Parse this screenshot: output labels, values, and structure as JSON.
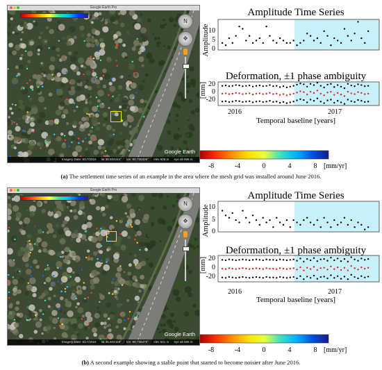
{
  "panels": [
    {
      "id": "a",
      "earth": {
        "window_title": "Google Earth Pro",
        "status": [
          "Imagery Date: 8/17/2015",
          "lat  36.604244°",
          "lon  -80.736325°",
          "elev  606 m",
          "eye alt  696 m"
        ],
        "logo": "Google Earth"
      },
      "amplitude": {
        "title": "Amplitude Time Series",
        "ylabel": "Amplitude",
        "yticks": [
          "10",
          "5",
          "0"
        ],
        "ylim": [
          0,
          13
        ]
      },
      "deformation": {
        "title": "Deformation, ±1 phase ambiguity",
        "ylabel": "[mm]",
        "yticks": [
          "20",
          "0",
          "-20"
        ],
        "ylim": [
          -30,
          30
        ]
      },
      "xticks": [
        "2016",
        "2017"
      ],
      "xlabel": "Temporal baseline [years]",
      "colorbar": {
        "ticks": [
          "-8",
          "-4",
          "0",
          "4",
          "8"
        ],
        "unit": "[mm/yr]"
      },
      "caption_tag": "(a)",
      "caption_text": " The settlement time series of an example in the area where the mesh grid was installed around June 2016."
    },
    {
      "id": "b",
      "earth": {
        "window_title": "Google Earth Pro",
        "status": [
          "Imagery Date: 8/17/2015",
          "lat  36.604348°",
          "lon  -80.736476°",
          "elev  621 m",
          "eye alt  696 m"
        ],
        "logo": "Google Earth"
      },
      "amplitude": {
        "title": "Amplitude Time Series",
        "ylabel": "Amplitude",
        "yticks": [
          "10",
          "5",
          "0"
        ],
        "ylim": [
          0,
          13
        ]
      },
      "deformation": {
        "title": "Deformation, ±1 phase ambiguity",
        "ylabel": "[mm]",
        "yticks": [
          "20",
          "0",
          "-20"
        ],
        "ylim": [
          -30,
          30
        ]
      },
      "xticks": [
        "2016",
        "2017"
      ],
      "xlabel": "Temporal baseline [years]",
      "colorbar": {
        "ticks": [
          "-8",
          "-4",
          "0",
          "4",
          "8"
        ],
        "unit": "[mm/yr]"
      },
      "caption_tag": "(b)",
      "caption_text": " A second example showing a stable point that started to become noisier after June 2016."
    }
  ],
  "chart_data": [
    {
      "type": "scatter",
      "title": "Amplitude Time Series",
      "ylabel": "Amplitude",
      "xlabel": "Temporal baseline [years]",
      "xlim": [
        2015.55,
        2017.45
      ],
      "ylim": [
        0,
        13
      ],
      "highlight_from": 2016.45,
      "series": [
        {
          "x": [
            2015.6,
            2015.64,
            2015.68,
            2015.72,
            2015.76,
            2015.8,
            2015.84,
            2015.88,
            2015.92,
            2015.96,
            2016.0,
            2016.04,
            2016.08,
            2016.12,
            2016.16,
            2016.2,
            2016.24,
            2016.28,
            2016.32,
            2016.36,
            2016.4,
            2016.44,
            2016.48,
            2016.52,
            2016.56,
            2016.6,
            2016.64,
            2016.68,
            2016.72,
            2016.76,
            2016.8,
            2016.84,
            2016.88,
            2016.92,
            2016.96,
            2017.0,
            2017.04,
            2017.08,
            2017.12,
            2017.16,
            2017.2,
            2017.24,
            2017.28,
            2017.32
          ],
          "y": [
            3,
            2,
            5,
            3,
            6,
            10,
            9,
            4,
            6,
            3,
            4,
            5,
            3,
            10,
            6,
            4,
            3,
            5,
            4,
            3,
            3,
            4,
            2,
            3,
            4,
            7,
            6,
            4,
            5,
            3,
            8,
            6,
            2,
            5,
            4,
            3,
            9,
            6,
            4,
            7,
            12,
            5,
            3,
            8
          ]
        }
      ]
    },
    {
      "type": "scatter",
      "title": "Deformation, ±1 phase ambiguity",
      "ylabel": "[mm]",
      "xlabel": "Temporal baseline [years]",
      "xlim": [
        2015.55,
        2017.45
      ],
      "ylim": [
        -30,
        30
      ],
      "highlight_from": 2016.45,
      "series": [
        {
          "x": [
            2015.6,
            2015.64,
            2015.68,
            2015.72,
            2015.76,
            2015.8,
            2015.84,
            2015.88,
            2015.92,
            2015.96,
            2016.0,
            2016.04,
            2016.08,
            2016.12,
            2016.16,
            2016.2,
            2016.24,
            2016.28,
            2016.32,
            2016.36,
            2016.4,
            2016.44,
            2016.48,
            2016.52,
            2016.56,
            2016.6,
            2016.64,
            2016.68,
            2016.72,
            2016.76,
            2016.8,
            2016.84,
            2016.88,
            2016.92,
            2016.96,
            2017.0,
            2017.04,
            2017.08,
            2017.12,
            2017.16,
            2017.2,
            2017.24,
            2017.28,
            2017.32
          ],
          "y": [
            0,
            1,
            -1,
            0,
            2,
            1,
            -1,
            0,
            1,
            -2,
            0,
            1,
            -1,
            0,
            2,
            -1,
            0,
            -3,
            -1,
            -4,
            -2,
            0,
            3,
            6,
            4,
            -2,
            5,
            2,
            8,
            0,
            -4,
            3,
            5,
            -3,
            2,
            -2,
            -6,
            5,
            1,
            -1,
            4,
            2,
            -1,
            0
          ]
        }
      ]
    },
    {
      "type": "scatter",
      "title": "Amplitude Time Series",
      "ylabel": "Amplitude",
      "xlabel": "Temporal baseline [years]",
      "xlim": [
        2015.55,
        2017.45
      ],
      "ylim": [
        0,
        13
      ],
      "highlight_from": 2016.45,
      "series": [
        {
          "x": [
            2015.6,
            2015.64,
            2015.68,
            2015.72,
            2015.76,
            2015.8,
            2015.84,
            2015.88,
            2015.92,
            2015.96,
            2016.0,
            2016.04,
            2016.08,
            2016.12,
            2016.16,
            2016.2,
            2016.24,
            2016.28,
            2016.32,
            2016.36,
            2016.4,
            2016.44,
            2016.48,
            2016.52,
            2016.56,
            2016.6,
            2016.64,
            2016.68,
            2016.72,
            2016.76,
            2016.8,
            2016.84,
            2016.88,
            2016.92,
            2016.96,
            2017.0,
            2017.04,
            2017.08,
            2017.12,
            2017.16,
            2017.2,
            2017.24,
            2017.28,
            2017.32
          ],
          "y": [
            9,
            7,
            6,
            8,
            5,
            4,
            9,
            6,
            4,
            7,
            5,
            3,
            6,
            4,
            5,
            2,
            6,
            4,
            3,
            5,
            2,
            5,
            4,
            3,
            5,
            6,
            4,
            3,
            5,
            2,
            6,
            4,
            2,
            5,
            3,
            4,
            6,
            3,
            5,
            2,
            4,
            3,
            1,
            2
          ]
        }
      ]
    },
    {
      "type": "scatter",
      "title": "Deformation, ±1 phase ambiguity",
      "ylabel": "[mm]",
      "xlabel": "Temporal baseline [years]",
      "xlim": [
        2015.55,
        2017.45
      ],
      "ylim": [
        -30,
        30
      ],
      "highlight_from": 2016.45,
      "series": [
        {
          "x": [
            2015.6,
            2015.64,
            2015.68,
            2015.72,
            2015.76,
            2015.8,
            2015.84,
            2015.88,
            2015.92,
            2015.96,
            2016.0,
            2016.04,
            2016.08,
            2016.12,
            2016.16,
            2016.2,
            2016.24,
            2016.28,
            2016.32,
            2016.36,
            2016.4,
            2016.44,
            2016.48,
            2016.52,
            2016.56,
            2016.6,
            2016.64,
            2016.68,
            2016.72,
            2016.76,
            2016.8,
            2016.84,
            2016.88,
            2016.92,
            2016.96,
            2017.0,
            2017.04,
            2017.08,
            2017.12,
            2017.16,
            2017.2,
            2017.24,
            2017.28,
            2017.32
          ],
          "y": [
            0,
            -1,
            1,
            0,
            -1,
            0,
            1,
            0,
            -1,
            0,
            1,
            0,
            -1,
            1,
            0,
            0,
            -1,
            1,
            0,
            -1,
            0,
            1,
            -2,
            3,
            -4,
            2,
            -1,
            4,
            -3,
            1,
            2,
            -2,
            5,
            -1,
            3,
            -3,
            2,
            -4,
            6,
            1,
            -2,
            3,
            0,
            2
          ]
        }
      ]
    }
  ],
  "colors": {
    "highlight": "#c8f0f8",
    "marker": "#000000",
    "deformation_center": "#e02020",
    "colorbar": [
      "#b00000",
      "#ff3000",
      "#ff9000",
      "#ffe000",
      "#e8ff40",
      "#40e0c0",
      "#00b0ff",
      "#0050e0",
      "#1a1a90"
    ]
  }
}
